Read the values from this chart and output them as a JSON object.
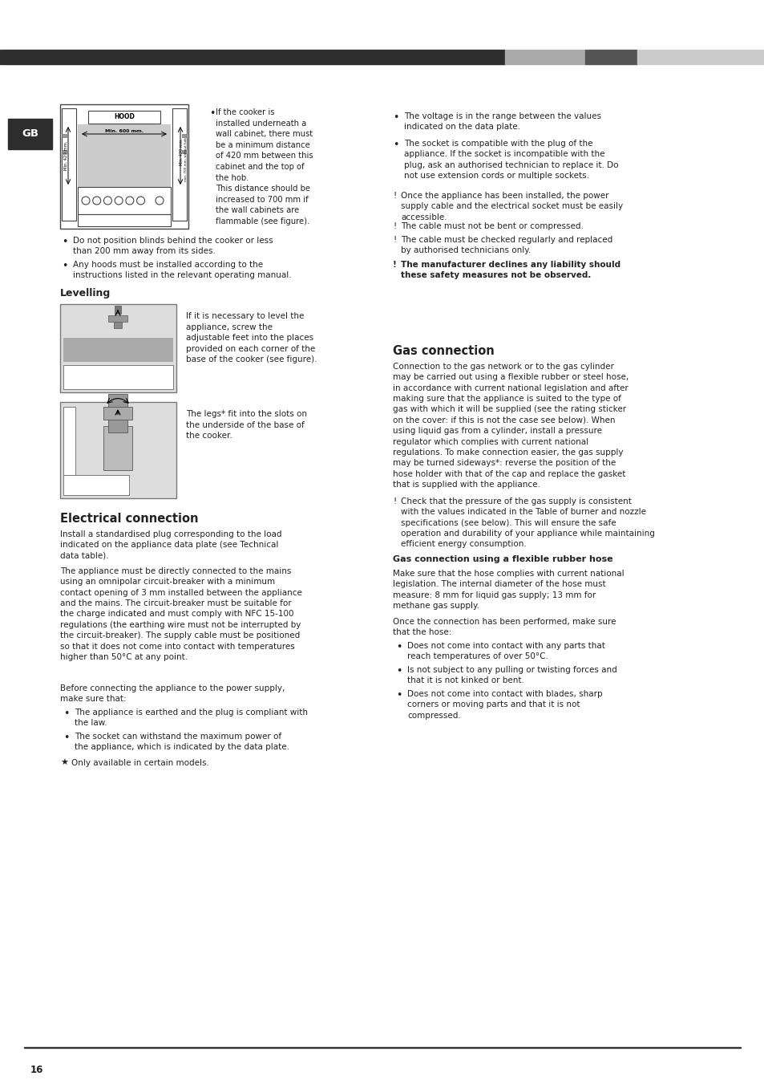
{
  "page_bg": "#ffffff",
  "header_bar_color": "#2d2d2d",
  "header_bar2_color": "#aaaaaa",
  "header_bar3_color": "#555555",
  "header_bar4_color": "#cccccc",
  "left_tab_color": "#2d2d2d",
  "left_tab_text": "GB",
  "footer_line_color": "#333333",
  "page_number": "16",
  "section1_heading": "Electrical connection",
  "section1_para1a": "Install a standardised plug corresponding to the load\nindicated on the appliance data plate (see Technical\ndata table).",
  "section1_para1b": "The appliance must be directly connected to the mains\nusing an omnipolar circuit-breaker with a minimum\ncontact opening of 3 mm installed between the appliance\nand the mains. The circuit-breaker must be suitable for\nthe charge indicated and must comply with NFC 15-100\nregulations (the earthing wire must not be interrupted by\nthe circuit-breaker). The supply cable must be positioned\nso that it does not come into contact with temperatures\nhigher than 50°C at any point.",
  "section1_para2": "Before connecting the appliance to the power supply,\nmake sure that:",
  "section1_bullets1": [
    "The appliance is earthed and the plug is compliant with\nthe law.",
    "The socket can withstand the maximum power of\nthe appliance, which is indicated by the data plate."
  ],
  "section1_star": "Only available in certain models.",
  "section2_heading": "Gas connection",
  "section2_para1": "Connection to the gas network or to the gas cylinder\nmay be carried out using a flexible rubber or steel hose,\nin accordance with current national legislation and after\nmaking sure that the appliance is suited to the type of\ngas with which it will be supplied (see the rating sticker\non the cover: if this is not the case see below). When\nusing liquid gas from a cylinder, install a pressure\nregulator which complies with current national\nregulations. To make connection easier, the gas supply\nmay be turned sideways*: reverse the position of the\nhose holder with that of the cap and replace the gasket\nthat is supplied with the appliance.",
  "section2_excl1": "Check that the pressure of the gas supply is consistent\nwith the values indicated in the Table of burner and nozzle\nspecifications (see below). This will ensure the safe\noperation and durability of your appliance while maintaining\nefficient energy consumption.",
  "section2_subheading": "Gas connection using a flexible rubber hose",
  "section2_para2": "Make sure that the hose complies with current national\nlegislation. The internal diameter of the hose must\nmeasure: 8 mm for liquid gas supply; 13 mm for\nmethane gas supply.",
  "section2_para3": "Once the connection has been performed, make sure\nthat the hose:",
  "section2_bullets2": [
    "Does not come into contact with any parts that\nreach temperatures of over 50°C.",
    "Is not subject to any pulling or twisting forces and\nthat it is not kinked or bent.",
    "Does not come into contact with blades, sharp\ncorners or moving parts and that it is not\ncompressed."
  ],
  "right_col_bullet1": "The voltage is in the range between the values\nindicated on the data plate.",
  "right_col_bullet2": "The socket is compatible with the plug of the\nappliance. If the socket is incompatible with the\nplug, ask an authorised technician to replace it. Do\nnot use extension cords or multiple sockets.",
  "right_excl1": "Once the appliance has been installed, the power\nsupply cable and the electrical socket must be easily\naccessible.",
  "right_excl2": "The cable must not be bent or compressed.",
  "right_excl3": "The cable must be checked regularly and replaced\nby authorised technicians only.",
  "right_excl4": "The manufacturer declines any liability should\nthese safety measures not be observed.",
  "top_bullet1": "Do not position blinds behind the cooker or less\nthan 200 mm away from its sides.",
  "top_bullet2": "Any hoods must be installed according to the\ninstructions listed in the relevant operating manual.",
  "levelling_heading": "Levelling",
  "levelling_text1": "If it is necessary to level the\nappliance, screw the\nadjustable feet into the places\nprovided on each corner of the\nbase of the cooker (see figure).",
  "levelling_text2": "The legs* fit into the slots on\nthe underside of the base of\nthe cooker.",
  "hood_text": "If the cooker is\ninstalled underneath a\nwall cabinet, there must\nbe a minimum distance\nof 420 mm between this\ncabinet and the top of\nthe hob.\nThis distance should be\nincreased to 700 mm if\nthe wall cabinets are\nflammable (see figure)."
}
